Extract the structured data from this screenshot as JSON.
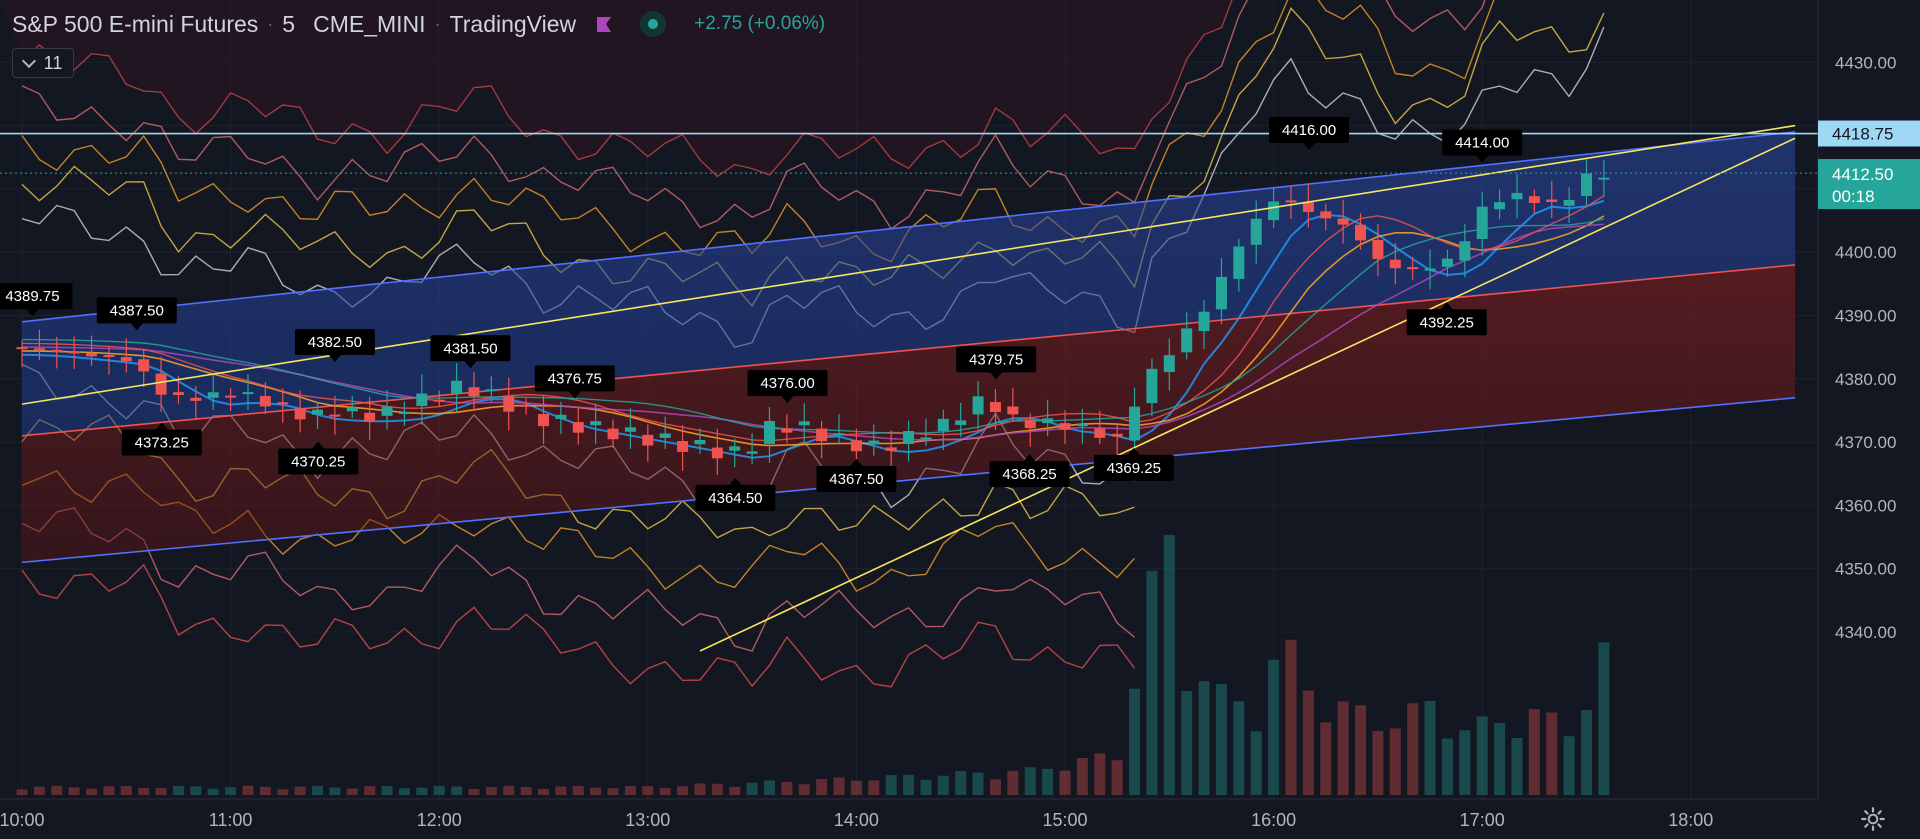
{
  "header": {
    "symbol": "S&P 500 E-mini Futures",
    "interval": "5",
    "exchange": "CME_MINI",
    "source": "TradingView",
    "change": "+2.75 (+0.06%)",
    "indicator_count": "11"
  },
  "colors": {
    "background": "#131722",
    "up": "#26a69a",
    "down": "#ef5350",
    "channel_upper": "#1e3a8a",
    "channel_lower": "#7f1d1d",
    "trendline": "#f5e663",
    "price_line_blue": "#9fd8f5",
    "accent": "#ab47bc"
  },
  "price_axis": {
    "ticks": [
      "4430.00",
      "4400.00",
      "4390.00",
      "4380.00",
      "4370.00",
      "4360.00",
      "4350.00",
      "4340.00"
    ],
    "line_label": "4418.75",
    "current_price": "4412.50",
    "countdown": "00:18"
  },
  "time_axis": {
    "ticks": [
      "10:00",
      "11:00",
      "12:00",
      "13:00",
      "14:00",
      "15:00",
      "16:00",
      "17:00",
      "18:00"
    ]
  },
  "annotations": [
    {
      "text": "4389.75",
      "t": 10.05,
      "p": 4389.75,
      "pos": "above"
    },
    {
      "text": "4387.50",
      "t": 10.55,
      "p": 4387.5,
      "pos": "above"
    },
    {
      "text": "4382.50",
      "t": 11.5,
      "p": 4382.5,
      "pos": "above"
    },
    {
      "text": "4381.50",
      "t": 12.15,
      "p": 4381.5,
      "pos": "above"
    },
    {
      "text": "4376.75",
      "t": 12.65,
      "p": 4376.75,
      "pos": "above"
    },
    {
      "text": "4376.00",
      "t": 13.67,
      "p": 4376.0,
      "pos": "above"
    },
    {
      "text": "4379.75",
      "t": 14.67,
      "p": 4379.75,
      "pos": "above"
    },
    {
      "text": "4416.00",
      "t": 16.17,
      "p": 4416.0,
      "pos": "above"
    },
    {
      "text": "4414.00",
      "t": 17.0,
      "p": 4414.0,
      "pos": "above"
    },
    {
      "text": "4373.25",
      "t": 10.67,
      "p": 4373.25,
      "pos": "below"
    },
    {
      "text": "4370.25",
      "t": 11.42,
      "p": 4370.25,
      "pos": "below"
    },
    {
      "text": "4364.50",
      "t": 13.42,
      "p": 4364.5,
      "pos": "below"
    },
    {
      "text": "4367.50",
      "t": 14.0,
      "p": 4367.5,
      "pos": "below"
    },
    {
      "text": "4368.25",
      "t": 14.83,
      "p": 4368.25,
      "pos": "below"
    },
    {
      "text": "4369.25",
      "t": 15.33,
      "p": 4369.25,
      "pos": "below"
    },
    {
      "text": "4392.25",
      "t": 16.83,
      "p": 4392.25,
      "pos": "below"
    }
  ],
  "chart_data": {
    "type": "candlestick",
    "x_unit": "hour",
    "xlim": [
      10.0,
      18.5
    ],
    "ylim": [
      4338.0,
      4438.0
    ],
    "bar_minutes": 5,
    "price_line": 4418.75,
    "last_price": 4412.5,
    "channel": {
      "upper": [
        [
          10.0,
          4389.0
        ],
        [
          18.5,
          4419.0
        ]
      ],
      "middle": [
        [
          10.0,
          4371.0
        ],
        [
          18.5,
          4398.0
        ]
      ],
      "lower": [
        [
          10.0,
          4351.0
        ],
        [
          18.5,
          4377.0
        ]
      ]
    },
    "trendlines": [
      {
        "from": [
          10.0,
          4376.0
        ],
        "to": [
          18.5,
          4420.0
        ]
      },
      {
        "from": [
          13.25,
          4337.0
        ],
        "to": [
          18.5,
          4418.0
        ]
      }
    ],
    "series": [
      {
        "name": "close",
        "points": [
          [
            10.0,
            4385
          ],
          [
            10.33,
            4384
          ],
          [
            10.58,
            4383
          ],
          [
            10.75,
            4377
          ],
          [
            10.92,
            4377
          ],
          [
            11.08,
            4378
          ],
          [
            11.25,
            4376
          ],
          [
            11.42,
            4374
          ],
          [
            11.58,
            4375
          ],
          [
            11.75,
            4374
          ],
          [
            12.0,
            4377
          ],
          [
            12.17,
            4379
          ],
          [
            12.33,
            4377
          ],
          [
            12.5,
            4374
          ],
          [
            12.67,
            4373
          ],
          [
            12.83,
            4372
          ],
          [
            13.0,
            4371
          ],
          [
            13.17,
            4370
          ],
          [
            13.33,
            4369
          ],
          [
            13.5,
            4368
          ],
          [
            13.67,
            4373
          ],
          [
            13.83,
            4372
          ],
          [
            14.0,
            4370
          ],
          [
            14.17,
            4369
          ],
          [
            14.33,
            4371
          ],
          [
            14.5,
            4373
          ],
          [
            14.67,
            4377
          ],
          [
            14.83,
            4373
          ],
          [
            15.0,
            4373
          ],
          [
            15.17,
            4372
          ],
          [
            15.33,
            4370
          ],
          [
            15.42,
            4379
          ],
          [
            15.58,
            4385
          ],
          [
            15.75,
            4392
          ],
          [
            15.92,
            4403
          ],
          [
            16.08,
            4409
          ],
          [
            16.25,
            4406
          ],
          [
            16.42,
            4404
          ],
          [
            16.58,
            4398
          ],
          [
            16.75,
            4397
          ],
          [
            16.92,
            4399
          ],
          [
            17.08,
            4408
          ],
          [
            17.25,
            4409
          ],
          [
            17.42,
            4407
          ],
          [
            17.58,
            4412.5
          ]
        ]
      }
    ],
    "volume": [
      [
        10.0,
        1
      ],
      [
        11.0,
        1
      ],
      [
        12.0,
        1
      ],
      [
        13.0,
        1
      ],
      [
        14.0,
        2
      ],
      [
        14.83,
        3
      ],
      [
        15.25,
        5
      ],
      [
        15.42,
        25
      ],
      [
        15.5,
        30
      ],
      [
        15.58,
        17
      ],
      [
        15.75,
        12
      ],
      [
        15.92,
        11
      ],
      [
        16.0,
        16
      ],
      [
        16.08,
        17
      ],
      [
        16.25,
        11
      ],
      [
        16.42,
        10
      ],
      [
        16.58,
        9
      ],
      [
        16.75,
        11
      ],
      [
        16.92,
        8
      ],
      [
        17.08,
        9
      ],
      [
        17.25,
        10
      ],
      [
        17.42,
        8
      ],
      [
        17.58,
        17
      ]
    ]
  }
}
